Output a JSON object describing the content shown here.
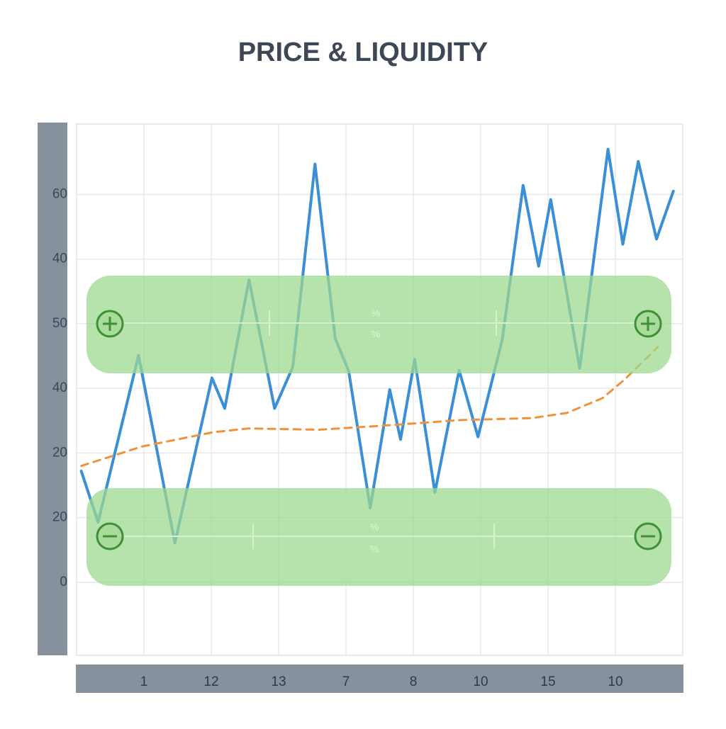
{
  "chart_data": {
    "type": "line",
    "title": "PRICE & LIQUIDITY",
    "xlim": [
      0,
      9
    ],
    "ylim": [
      -11.3,
      70.9
    ],
    "xticks": [
      1,
      {
        "value": 2,
        "label": "12"
      },
      {
        "value": 3,
        "label": "13"
      },
      {
        "value": 4,
        "label": "7"
      },
      {
        "value": 5,
        "label": "8"
      },
      {
        "value": 6,
        "label": "10"
      },
      {
        "value": 7,
        "label": "15"
      },
      {
        "value": 8,
        "label": "10"
      }
    ],
    "yticks": [
      0,
      {
        "value": 10,
        "label": "20"
      },
      20,
      {
        "value": 30,
        "label": "40"
      },
      {
        "value": 40,
        "label": "50"
      },
      {
        "value": 50,
        "label": "40"
      },
      60
    ],
    "grid": true,
    "annotations": [
      "%",
      "%",
      "%",
      "%"
    ],
    "series": [
      {
        "color": "#3a8fd6",
        "dashed": false,
        "x": [
          0.07,
          0.32,
          0.92,
          1.46,
          2.01,
          2.2,
          2.56,
          2.94,
          3.21,
          3.54,
          3.84,
          4.04,
          4.36,
          4.65,
          4.81,
          5.02,
          5.32,
          5.68,
          5.96,
          6.32,
          6.63,
          6.86,
          7.04,
          7.47,
          7.89,
          8.11,
          8.34,
          8.61,
          8.86
        ],
        "values": [
          17.2,
          9.3,
          35.1,
          6.1,
          31.6,
          26.9,
          46.8,
          26.9,
          33.3,
          64.7,
          37.7,
          32.7,
          11.5,
          29.8,
          22.1,
          34.5,
          13.9,
          32.8,
          22.5,
          37.5,
          61.4,
          48.9,
          59.2,
          33.1,
          67.0,
          52.3,
          65.1,
          53.1,
          60.5
        ]
      },
      {
        "color": "#f0923a",
        "dashed": true,
        "x": [
          0.07,
          0.97,
          2.02,
          2.55,
          3.6,
          4.65,
          5.71,
          6.76,
          7.28,
          7.81,
          8.13,
          8.63
        ],
        "values": [
          18,
          21,
          23.2,
          23.8,
          23.6,
          24.3,
          25.1,
          25.4,
          26.2,
          28.5,
          31.3,
          36.4
        ]
      }
    ]
  }
}
